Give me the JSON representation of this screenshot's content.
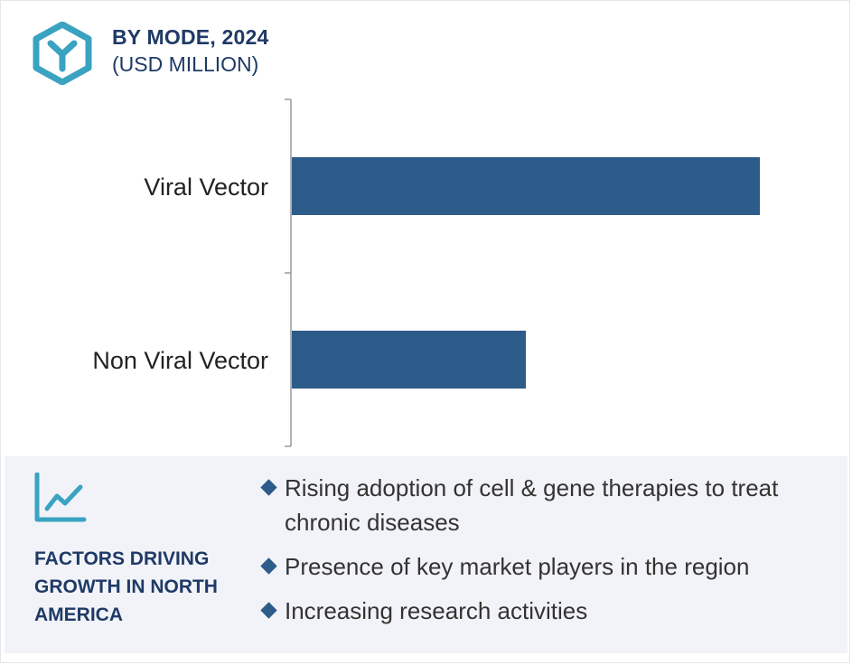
{
  "header": {
    "title": "BY MODE, 2024",
    "subtitle": "(USD MILLION)",
    "logo_icon": "hexagon-y-logo-icon"
  },
  "colors": {
    "bar": "#2d5b8a",
    "heading": "#1f3a66",
    "logo": "#3aa3c1",
    "panel_bg": "#f2f3f8"
  },
  "chart_data": {
    "type": "bar",
    "orientation": "horizontal",
    "categories": [
      "Viral Vector",
      "Non Viral Vector"
    ],
    "series": [
      {
        "values": [
          100,
          50
        ]
      }
    ],
    "value_scale": "relative (no value axis printed)",
    "title": "BY MODE, 2024",
    "subtitle": "(USD MILLION)",
    "xlabel": "",
    "ylabel": "",
    "grid": false,
    "legend": "none"
  },
  "factors": {
    "icon": "trend-line-chart-icon",
    "title": "FACTORS DRIVING GROWTH IN NORTH AMERICA",
    "items": [
      "Rising adoption of cell & gene therapies to treat chronic diseases",
      "Presence of key market players in the region",
      "Increasing research activities"
    ]
  }
}
